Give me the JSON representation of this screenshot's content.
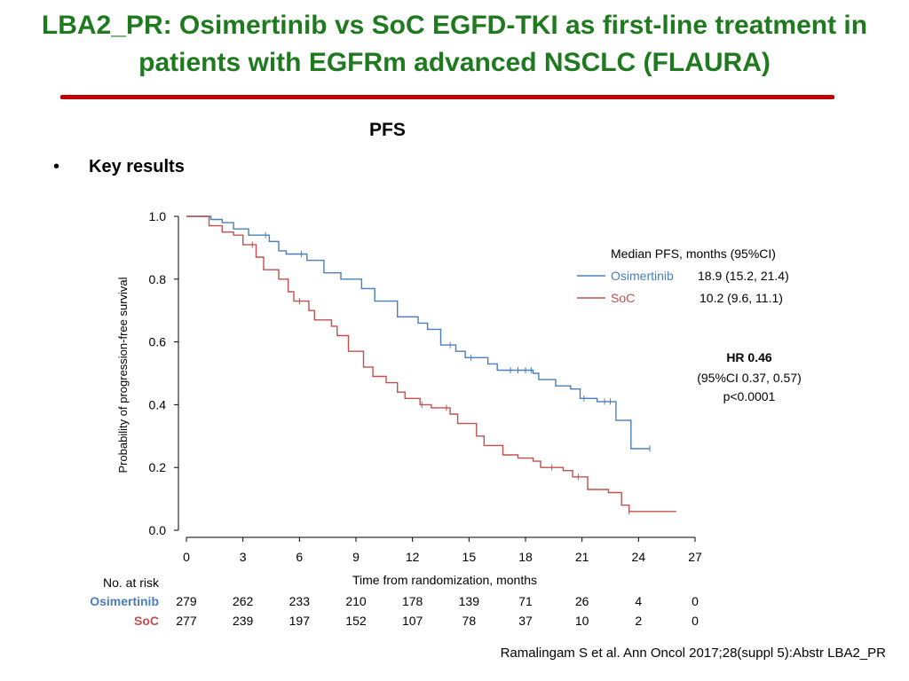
{
  "slide": {
    "title": "LBA2_PR: Osimertinib vs SoC EGFD-TKI as first-line treatment in patients with EGFRm advanced NSCLC (FLAURA)",
    "section_label": "PFS",
    "bullet_symbol": "•",
    "bullet_text": "Key results",
    "citation": "Ramalingam S et al. Ann Oncol 2017;28(suppl 5):Abstr LBA2_PR"
  },
  "colors": {
    "title": "#1f7a1f",
    "title_rule": "#c00000",
    "osimertinib": "#4a7ebb",
    "soc": "#c0504d"
  },
  "chart_data": {
    "type": "line",
    "xlabel": "Time from randomization, months",
    "ylabel": "Probability of progression-free survival",
    "xlim": [
      0,
      27
    ],
    "ylim": [
      0,
      1
    ],
    "x_ticks": [
      0,
      3,
      6,
      9,
      12,
      15,
      18,
      21,
      24,
      27
    ],
    "y_ticks": [
      0.0,
      0.2,
      0.4,
      0.6,
      0.8,
      1.0
    ],
    "y_tick_labels": [
      "0.0",
      "0.2",
      "0.4",
      "0.6",
      "0.8",
      "1.0"
    ],
    "grid": false,
    "legend": {
      "placement": "top-right",
      "header": "Median PFS, months (95%CI)",
      "entries": [
        {
          "name": "Osimertinib",
          "value": "18.9 (15.2, 21.4)"
        },
        {
          "name": "SoC",
          "value": "10.2 (9.6, 11.1)"
        }
      ]
    },
    "annotation": {
      "hr": "HR 0.46",
      "ci": "(95%CI 0.37, 0.57)",
      "p": "p<0.0001"
    },
    "series": [
      {
        "name": "Osimertinib",
        "step_points": [
          [
            0,
            1.0
          ],
          [
            1.3,
            1.0
          ],
          [
            1.3,
            0.99
          ],
          [
            1.9,
            0.99
          ],
          [
            1.9,
            0.98
          ],
          [
            2.5,
            0.98
          ],
          [
            2.5,
            0.96
          ],
          [
            3.3,
            0.96
          ],
          [
            3.3,
            0.94
          ],
          [
            4.4,
            0.94
          ],
          [
            4.4,
            0.92
          ],
          [
            4.9,
            0.92
          ],
          [
            4.9,
            0.89
          ],
          [
            5.3,
            0.89
          ],
          [
            5.3,
            0.88
          ],
          [
            6.4,
            0.88
          ],
          [
            6.4,
            0.86
          ],
          [
            7.3,
            0.86
          ],
          [
            7.3,
            0.82
          ],
          [
            8.2,
            0.82
          ],
          [
            8.2,
            0.8
          ],
          [
            9.3,
            0.8
          ],
          [
            9.3,
            0.77
          ],
          [
            10,
            0.77
          ],
          [
            10,
            0.73
          ],
          [
            11.2,
            0.73
          ],
          [
            11.2,
            0.68
          ],
          [
            12.3,
            0.68
          ],
          [
            12.3,
            0.66
          ],
          [
            12.8,
            0.66
          ],
          [
            12.8,
            0.64
          ],
          [
            13.5,
            0.64
          ],
          [
            13.5,
            0.59
          ],
          [
            14.3,
            0.59
          ],
          [
            14.3,
            0.57
          ],
          [
            14.8,
            0.57
          ],
          [
            14.8,
            0.55
          ],
          [
            16,
            0.55
          ],
          [
            16,
            0.53
          ],
          [
            16.5,
            0.53
          ],
          [
            16.5,
            0.51
          ],
          [
            18.4,
            0.51
          ],
          [
            18.4,
            0.5
          ],
          [
            18.7,
            0.5
          ],
          [
            18.7,
            0.48
          ],
          [
            19.6,
            0.48
          ],
          [
            19.6,
            0.46
          ],
          [
            20.4,
            0.46
          ],
          [
            20.4,
            0.45
          ],
          [
            20.9,
            0.45
          ],
          [
            20.9,
            0.42
          ],
          [
            21.8,
            0.42
          ],
          [
            21.8,
            0.41
          ],
          [
            22.8,
            0.41
          ],
          [
            22.8,
            0.35
          ],
          [
            23.6,
            0.35
          ],
          [
            23.6,
            0.26
          ],
          [
            24.6,
            0.26
          ]
        ],
        "censor_marks": [
          [
            4.2,
            0.94
          ],
          [
            6.1,
            0.88
          ],
          [
            14.0,
            0.59
          ],
          [
            15.1,
            0.55
          ],
          [
            17.2,
            0.51
          ],
          [
            17.6,
            0.51
          ],
          [
            18.0,
            0.51
          ],
          [
            18.3,
            0.51
          ],
          [
            21.1,
            0.42
          ],
          [
            22.2,
            0.41
          ],
          [
            22.5,
            0.41
          ],
          [
            24.6,
            0.26
          ]
        ]
      },
      {
        "name": "SoC",
        "step_points": [
          [
            0,
            1.0
          ],
          [
            1.2,
            1.0
          ],
          [
            1.2,
            0.97
          ],
          [
            1.9,
            0.97
          ],
          [
            1.9,
            0.95
          ],
          [
            2.5,
            0.95
          ],
          [
            2.5,
            0.94
          ],
          [
            3.0,
            0.94
          ],
          [
            3.0,
            0.91
          ],
          [
            3.7,
            0.91
          ],
          [
            3.7,
            0.87
          ],
          [
            4.1,
            0.87
          ],
          [
            4.1,
            0.83
          ],
          [
            4.9,
            0.83
          ],
          [
            4.9,
            0.8
          ],
          [
            5.4,
            0.8
          ],
          [
            5.4,
            0.76
          ],
          [
            5.7,
            0.76
          ],
          [
            5.7,
            0.73
          ],
          [
            6.5,
            0.73
          ],
          [
            6.5,
            0.7
          ],
          [
            6.8,
            0.7
          ],
          [
            6.8,
            0.67
          ],
          [
            7.7,
            0.67
          ],
          [
            7.7,
            0.65
          ],
          [
            8.0,
            0.65
          ],
          [
            8.0,
            0.62
          ],
          [
            8.6,
            0.62
          ],
          [
            8.6,
            0.57
          ],
          [
            9.4,
            0.57
          ],
          [
            9.4,
            0.52
          ],
          [
            9.9,
            0.52
          ],
          [
            9.9,
            0.49
          ],
          [
            10.6,
            0.49
          ],
          [
            10.6,
            0.47
          ],
          [
            11.2,
            0.47
          ],
          [
            11.2,
            0.44
          ],
          [
            11.6,
            0.44
          ],
          [
            11.6,
            0.42
          ],
          [
            12.4,
            0.42
          ],
          [
            12.4,
            0.4
          ],
          [
            13.0,
            0.4
          ],
          [
            13.0,
            0.39
          ],
          [
            14.0,
            0.39
          ],
          [
            14.0,
            0.37
          ],
          [
            14.4,
            0.37
          ],
          [
            14.4,
            0.34
          ],
          [
            15.4,
            0.34
          ],
          [
            15.4,
            0.3
          ],
          [
            15.8,
            0.3
          ],
          [
            15.8,
            0.27
          ],
          [
            16.8,
            0.27
          ],
          [
            16.8,
            0.24
          ],
          [
            17.6,
            0.24
          ],
          [
            17.6,
            0.23
          ],
          [
            18.4,
            0.23
          ],
          [
            18.4,
            0.22
          ],
          [
            18.8,
            0.22
          ],
          [
            18.8,
            0.2
          ],
          [
            20.0,
            0.2
          ],
          [
            20.0,
            0.19
          ],
          [
            20.5,
            0.19
          ],
          [
            20.5,
            0.17
          ],
          [
            21.3,
            0.17
          ],
          [
            21.3,
            0.13
          ],
          [
            22.4,
            0.13
          ],
          [
            22.4,
            0.12
          ],
          [
            23.1,
            0.12
          ],
          [
            23.1,
            0.08
          ],
          [
            23.5,
            0.08
          ],
          [
            23.5,
            0.06
          ],
          [
            26.0,
            0.06
          ]
        ],
        "censor_marks": [
          [
            3.5,
            0.91
          ],
          [
            6.0,
            0.73
          ],
          [
            12.5,
            0.4
          ],
          [
            13.8,
            0.39
          ],
          [
            19.4,
            0.2
          ],
          [
            20.8,
            0.17
          ],
          [
            23.5,
            0.06
          ]
        ]
      }
    ],
    "at_risk": {
      "header": "No. at risk",
      "rows": [
        {
          "name": "Osimertinib",
          "values": [
            "279",
            "262",
            "233",
            "210",
            "178",
            "139",
            "71",
            "26",
            "4",
            "0"
          ]
        },
        {
          "name": "SoC",
          "values": [
            "277",
            "239",
            "197",
            "152",
            "107",
            "78",
            "37",
            "10",
            "2",
            "0"
          ]
        }
      ]
    }
  }
}
